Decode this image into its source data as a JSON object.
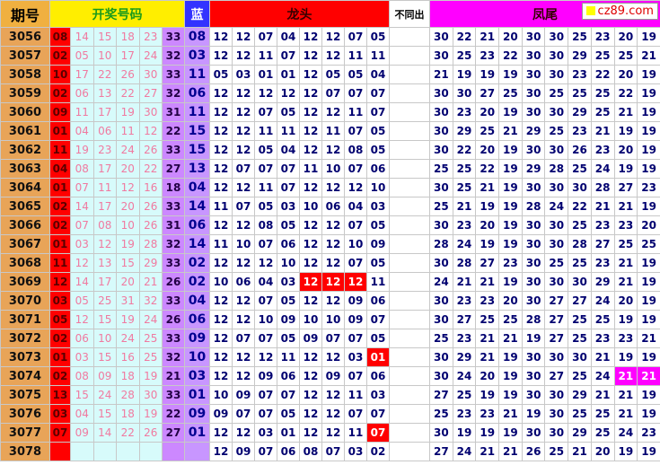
{
  "header": {
    "issue": "期号",
    "draw": "开奖号码",
    "blue": "蓝",
    "head": "龙头",
    "diff": "不同出",
    "tail": "凤尾",
    "logo": "cz89.com"
  },
  "rows": [
    {
      "issue": "3056",
      "draw": [
        "08",
        "14",
        "15",
        "18",
        "23",
        "33"
      ],
      "blue": "08",
      "head": [
        "12",
        "12",
        "07",
        "04",
        "12",
        "12",
        "07",
        "05"
      ],
      "tail": [
        "30",
        "22",
        "21",
        "20",
        "30",
        "30",
        "25",
        "23",
        "20",
        "19"
      ]
    },
    {
      "issue": "3057",
      "draw": [
        "02",
        "05",
        "10",
        "17",
        "24",
        "32"
      ],
      "blue": "03",
      "head": [
        "12",
        "12",
        "11",
        "07",
        "12",
        "12",
        "11",
        "11"
      ],
      "tail": [
        "30",
        "25",
        "23",
        "22",
        "30",
        "30",
        "29",
        "25",
        "25",
        "21"
      ]
    },
    {
      "issue": "3058",
      "draw": [
        "10",
        "17",
        "22",
        "26",
        "30",
        "33"
      ],
      "blue": "11",
      "head": [
        "05",
        "03",
        "01",
        "01",
        "12",
        "05",
        "05",
        "04"
      ],
      "tail": [
        "21",
        "19",
        "19",
        "19",
        "30",
        "30",
        "23",
        "22",
        "20",
        "19"
      ]
    },
    {
      "issue": "3059",
      "draw": [
        "02",
        "06",
        "13",
        "22",
        "27",
        "32"
      ],
      "blue": "06",
      "head": [
        "12",
        "12",
        "12",
        "12",
        "12",
        "07",
        "07",
        "07"
      ],
      "tail": [
        "30",
        "30",
        "27",
        "25",
        "30",
        "25",
        "25",
        "25",
        "22",
        "19"
      ]
    },
    {
      "issue": "3060",
      "draw": [
        "09",
        "11",
        "17",
        "19",
        "30",
        "31"
      ],
      "blue": "11",
      "head": [
        "12",
        "12",
        "07",
        "05",
        "12",
        "12",
        "11",
        "07"
      ],
      "tail": [
        "30",
        "23",
        "20",
        "19",
        "30",
        "30",
        "29",
        "25",
        "21",
        "19"
      ]
    },
    {
      "issue": "3061",
      "draw": [
        "01",
        "04",
        "06",
        "11",
        "12",
        "22"
      ],
      "blue": "15",
      "head": [
        "12",
        "12",
        "11",
        "11",
        "12",
        "11",
        "07",
        "05"
      ],
      "tail": [
        "30",
        "29",
        "25",
        "21",
        "29",
        "25",
        "23",
        "21",
        "19",
        "19"
      ]
    },
    {
      "issue": "3062",
      "draw": [
        "11",
        "19",
        "23",
        "24",
        "26",
        "33"
      ],
      "blue": "15",
      "head": [
        "12",
        "12",
        "05",
        "04",
        "12",
        "12",
        "08",
        "05"
      ],
      "tail": [
        "30",
        "22",
        "20",
        "19",
        "30",
        "30",
        "26",
        "23",
        "20",
        "19"
      ]
    },
    {
      "issue": "3063",
      "draw": [
        "04",
        "08",
        "17",
        "20",
        "22",
        "27"
      ],
      "blue": "13",
      "head": [
        "12",
        "07",
        "07",
        "07",
        "11",
        "10",
        "07",
        "06"
      ],
      "tail": [
        "25",
        "25",
        "22",
        "19",
        "29",
        "28",
        "25",
        "24",
        "19",
        "19"
      ]
    },
    {
      "issue": "3064",
      "draw": [
        "01",
        "07",
        "11",
        "12",
        "16",
        "18"
      ],
      "blue": "04",
      "head": [
        "12",
        "12",
        "11",
        "07",
        "12",
        "12",
        "12",
        "10"
      ],
      "tail": [
        "30",
        "25",
        "21",
        "19",
        "30",
        "30",
        "30",
        "28",
        "27",
        "23"
      ]
    },
    {
      "issue": "3065",
      "draw": [
        "02",
        "14",
        "17",
        "20",
        "26",
        "33"
      ],
      "blue": "14",
      "head": [
        "11",
        "07",
        "05",
        "03",
        "10",
        "06",
        "04",
        "03"
      ],
      "tail": [
        "25",
        "21",
        "19",
        "19",
        "28",
        "24",
        "22",
        "21",
        "21",
        "19"
      ]
    },
    {
      "issue": "3066",
      "draw": [
        "02",
        "07",
        "08",
        "10",
        "26",
        "31"
      ],
      "blue": "06",
      "head": [
        "12",
        "12",
        "08",
        "05",
        "12",
        "12",
        "07",
        "05"
      ],
      "tail": [
        "30",
        "23",
        "20",
        "19",
        "30",
        "30",
        "25",
        "23",
        "23",
        "20"
      ]
    },
    {
      "issue": "3067",
      "draw": [
        "01",
        "03",
        "12",
        "19",
        "28",
        "32"
      ],
      "blue": "14",
      "head": [
        "11",
        "10",
        "07",
        "06",
        "12",
        "12",
        "10",
        "09"
      ],
      "tail": [
        "28",
        "24",
        "19",
        "19",
        "30",
        "30",
        "28",
        "27",
        "25",
        "25"
      ]
    },
    {
      "issue": "3068",
      "draw": [
        "11",
        "12",
        "13",
        "15",
        "29",
        "33"
      ],
      "blue": "02",
      "head": [
        "12",
        "12",
        "12",
        "10",
        "12",
        "12",
        "07",
        "05"
      ],
      "tail": [
        "30",
        "28",
        "27",
        "23",
        "30",
        "25",
        "25",
        "23",
        "21",
        "19"
      ]
    },
    {
      "issue": "3069",
      "draw": [
        "12",
        "14",
        "17",
        "20",
        "21",
        "26"
      ],
      "blue": "02",
      "head": [
        "10",
        "06",
        "04",
        "03",
        "12",
        "12",
        "12",
        "11"
      ],
      "tail": [
        "24",
        "21",
        "21",
        "19",
        "30",
        "30",
        "30",
        "29",
        "21",
        "19"
      ]
    },
    {
      "issue": "3070",
      "draw": [
        "03",
        "05",
        "25",
        "31",
        "32",
        "33"
      ],
      "blue": "04",
      "head": [
        "12",
        "12",
        "07",
        "05",
        "12",
        "12",
        "09",
        "06"
      ],
      "tail": [
        "30",
        "23",
        "23",
        "20",
        "30",
        "27",
        "27",
        "24",
        "20",
        "19"
      ]
    },
    {
      "issue": "3071",
      "draw": [
        "05",
        "12",
        "15",
        "19",
        "24",
        "26"
      ],
      "blue": "06",
      "head": [
        "12",
        "12",
        "10",
        "09",
        "10",
        "10",
        "09",
        "07"
      ],
      "tail": [
        "30",
        "27",
        "25",
        "25",
        "28",
        "27",
        "25",
        "25",
        "19",
        "19"
      ]
    },
    {
      "issue": "3072",
      "draw": [
        "02",
        "06",
        "10",
        "24",
        "25",
        "33"
      ],
      "blue": "09",
      "head": [
        "12",
        "07",
        "07",
        "05",
        "09",
        "07",
        "07",
        "05"
      ],
      "tail": [
        "25",
        "23",
        "21",
        "21",
        "19",
        "27",
        "25",
        "23",
        "23",
        "21"
      ]
    },
    {
      "issue": "3073",
      "draw": [
        "01",
        "03",
        "15",
        "16",
        "25",
        "32"
      ],
      "blue": "10",
      "head": [
        "12",
        "12",
        "12",
        "11",
        "12",
        "12",
        "03",
        "01"
      ],
      "tail": [
        "30",
        "29",
        "21",
        "19",
        "30",
        "30",
        "30",
        "21",
        "19",
        "19"
      ]
    },
    {
      "issue": "3074",
      "draw": [
        "02",
        "08",
        "09",
        "18",
        "19",
        "21"
      ],
      "blue": "03",
      "head": [
        "12",
        "12",
        "09",
        "06",
        "12",
        "09",
        "07",
        "06"
      ],
      "tail": [
        "30",
        "24",
        "20",
        "19",
        "30",
        "27",
        "25",
        "24",
        "21",
        "21"
      ]
    },
    {
      "issue": "3075",
      "draw": [
        "13",
        "15",
        "24",
        "28",
        "30",
        "33"
      ],
      "blue": "01",
      "head": [
        "10",
        "09",
        "07",
        "07",
        "12",
        "12",
        "11",
        "03"
      ],
      "tail": [
        "27",
        "25",
        "19",
        "19",
        "30",
        "30",
        "29",
        "21",
        "21",
        "19"
      ]
    },
    {
      "issue": "3076",
      "draw": [
        "03",
        "04",
        "15",
        "18",
        "19",
        "22"
      ],
      "blue": "09",
      "head": [
        "09",
        "07",
        "07",
        "05",
        "12",
        "12",
        "07",
        "07"
      ],
      "tail": [
        "25",
        "23",
        "23",
        "21",
        "19",
        "30",
        "25",
        "25",
        "21",
        "19"
      ]
    },
    {
      "issue": "3077",
      "draw": [
        "07",
        "09",
        "14",
        "22",
        "26",
        "27"
      ],
      "blue": "01",
      "head": [
        "12",
        "12",
        "03",
        "01",
        "12",
        "12",
        "11",
        "07"
      ],
      "tail": [
        "30",
        "19",
        "19",
        "19",
        "30",
        "30",
        "29",
        "25",
        "24",
        "23"
      ]
    },
    {
      "issue": "3078",
      "draw": [],
      "head": [
        "12",
        "09",
        "07",
        "06",
        "08",
        "07",
        "03",
        "02"
      ],
      "tail": [
        "27",
        "24",
        "21",
        "21",
        "26",
        "25",
        "21",
        "20",
        "19",
        "19"
      ]
    }
  ]
}
